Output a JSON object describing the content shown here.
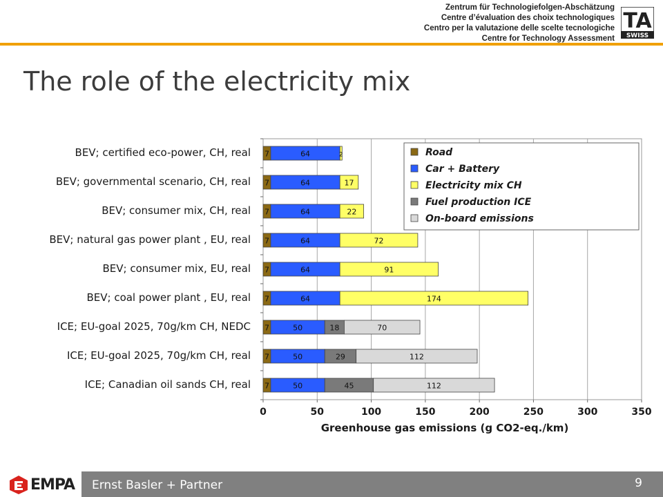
{
  "header": {
    "lines": [
      "Zentrum für Technologiefolgen-Abschätzung",
      "Centre d’évaluation des choix technologiques",
      "Centro per la valutazione delle scelte tecnologiche",
      "Centre for Technology Assessment"
    ],
    "logo_text": "TA",
    "logo_sub": "SWISS"
  },
  "title": "The role of the electricity mix",
  "footer": {
    "empa": "EMPA",
    "ebp": "Ernst Basler + Partner",
    "page_number": "9"
  },
  "colors": {
    "road": "#8b6914",
    "car_battery": "#2a5cff",
    "electricity": "#ffff66",
    "fuel_production": "#7a7a7a",
    "onboard": "#d9d9d9",
    "accent": "#f0a000"
  },
  "chart_data": {
    "type": "bar",
    "orientation": "horizontal",
    "stacked": true,
    "categories": [
      "BEV; certified eco-power, CH, real",
      "BEV; governmental scenario, CH, real",
      "BEV; consumer mix, CH, real",
      "BEV; natural gas power plant , EU, real",
      "BEV; consumer mix, EU, real",
      "BEV; coal power plant , EU, real",
      "ICE; EU-goal 2025, 70g/km CH, NEDC",
      "ICE; EU-goal 2025, 70g/km CH, real",
      "ICE; Canadian oil sands CH, real"
    ],
    "series": [
      {
        "name": "Road",
        "values": [
          7,
          7,
          7,
          7,
          7,
          7,
          7,
          7,
          7
        ]
      },
      {
        "name": "Car + Battery",
        "values": [
          64,
          64,
          64,
          64,
          64,
          64,
          50,
          50,
          50
        ]
      },
      {
        "name": "Electricity mix CH",
        "values": [
          2,
          17,
          22,
          72,
          91,
          174,
          0,
          0,
          0
        ]
      },
      {
        "name": "Fuel production ICE",
        "values": [
          0,
          0,
          0,
          0,
          0,
          0,
          18,
          29,
          45
        ]
      },
      {
        "name": "On-board emissions",
        "values": [
          0,
          0,
          0,
          0,
          0,
          0,
          70,
          112,
          112
        ]
      }
    ],
    "xlabel": "Greenhouse gas emissions (g CO2-eq./km)",
    "xlim": [
      0,
      350
    ],
    "xticks": [
      "0",
      "50",
      "100",
      "150",
      "200",
      "250",
      "300",
      "350"
    ],
    "grid": true,
    "legend": "top-right"
  }
}
